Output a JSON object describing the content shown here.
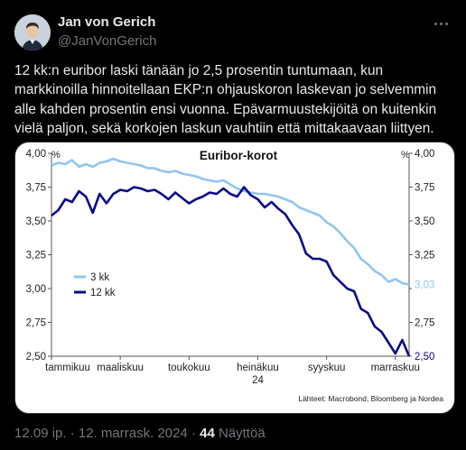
{
  "user": {
    "display_name": "Jan von Gerich",
    "handle": "@JanVonGerich"
  },
  "tweet": {
    "text": "12 kk:n euribor laski tänään jo 2,5 prosentin tuntumaan, kun markkinoilla hinnoitellaan EKP:n ohjauskoron laskevan jo selvemmin alle kahden prosentin ensi vuonna. Epävarmuustekijöitä on kuitenkin vielä paljon, sekä korkojen laskun vauhtiin että mittakaavaan liittyen."
  },
  "footer": {
    "timestamp": "12.09 ip. · 12. marrask. 2024 · ",
    "views_count": "44",
    "views_label": " Näyttöä"
  },
  "chart_data": {
    "type": "line",
    "title": "Euribor-korot",
    "left_unit": "%",
    "right_unit": "%",
    "ylim": [
      2.5,
      4.0
    ],
    "y_ticks": [
      "4,00",
      "3,75",
      "3,50",
      "3,25",
      "3,00",
      "2,75",
      "2,50"
    ],
    "y_tick_values": [
      4.0,
      3.75,
      3.5,
      3.25,
      3.0,
      2.75,
      2.5
    ],
    "x_ticks": [
      "tammikuu",
      "maaliskuu",
      "toukokuu",
      "heinäkuu",
      "syyskuu",
      "marraskuu"
    ],
    "x_tick_month": [
      0,
      2,
      4,
      6,
      8,
      10
    ],
    "x_sub_label": "24",
    "xlim_months": [
      0,
      10.4
    ],
    "source": "Lähteet: Macrobond, Bloomberg ja Nordea",
    "colors": {
      "series_3m": "#92c5f0",
      "series_12m": "#0a0a8a",
      "axis": "#555555"
    },
    "series": [
      {
        "name": "3 kk",
        "end_label": "3,03",
        "x": [
          0.0,
          0.2,
          0.4,
          0.6,
          0.8,
          1.0,
          1.2,
          1.4,
          1.6,
          1.8,
          2.0,
          2.2,
          2.4,
          2.6,
          2.8,
          3.0,
          3.2,
          3.4,
          3.6,
          3.8,
          4.0,
          4.2,
          4.4,
          4.6,
          4.8,
          5.0,
          5.2,
          5.4,
          5.6,
          5.8,
          6.0,
          6.2,
          6.4,
          6.6,
          6.8,
          7.0,
          7.2,
          7.4,
          7.6,
          7.8,
          8.0,
          8.2,
          8.4,
          8.6,
          8.8,
          9.0,
          9.2,
          9.4,
          9.6,
          9.8,
          10.0,
          10.2,
          10.4
        ],
        "values": [
          3.91,
          3.93,
          3.92,
          3.95,
          3.9,
          3.92,
          3.9,
          3.93,
          3.94,
          3.96,
          3.94,
          3.93,
          3.92,
          3.91,
          3.89,
          3.89,
          3.87,
          3.86,
          3.87,
          3.85,
          3.84,
          3.83,
          3.81,
          3.8,
          3.79,
          3.8,
          3.77,
          3.74,
          3.72,
          3.71,
          3.7,
          3.7,
          3.69,
          3.68,
          3.66,
          3.64,
          3.6,
          3.58,
          3.56,
          3.54,
          3.49,
          3.46,
          3.41,
          3.35,
          3.3,
          3.22,
          3.18,
          3.13,
          3.1,
          3.05,
          3.07,
          3.04,
          3.03
        ]
      },
      {
        "name": "12 kk",
        "end_label": "2,50",
        "x": [
          0.0,
          0.2,
          0.4,
          0.6,
          0.8,
          1.0,
          1.2,
          1.4,
          1.6,
          1.8,
          2.0,
          2.2,
          2.4,
          2.6,
          2.8,
          3.0,
          3.2,
          3.4,
          3.6,
          3.8,
          4.0,
          4.2,
          4.4,
          4.6,
          4.8,
          5.0,
          5.2,
          5.4,
          5.6,
          5.8,
          6.0,
          6.2,
          6.4,
          6.6,
          6.8,
          7.0,
          7.2,
          7.4,
          7.6,
          7.8,
          8.0,
          8.2,
          8.4,
          8.6,
          8.8,
          9.0,
          9.2,
          9.4,
          9.6,
          9.8,
          10.0,
          10.2,
          10.4
        ],
        "values": [
          3.54,
          3.58,
          3.66,
          3.64,
          3.72,
          3.68,
          3.56,
          3.7,
          3.63,
          3.7,
          3.73,
          3.72,
          3.75,
          3.74,
          3.72,
          3.73,
          3.7,
          3.66,
          3.71,
          3.67,
          3.63,
          3.66,
          3.68,
          3.71,
          3.7,
          3.74,
          3.7,
          3.68,
          3.75,
          3.69,
          3.66,
          3.6,
          3.64,
          3.59,
          3.55,
          3.47,
          3.4,
          3.26,
          3.22,
          3.22,
          3.2,
          3.1,
          3.05,
          3.0,
          2.98,
          2.85,
          2.82,
          2.72,
          2.68,
          2.6,
          2.52,
          2.62,
          2.5
        ]
      }
    ]
  }
}
